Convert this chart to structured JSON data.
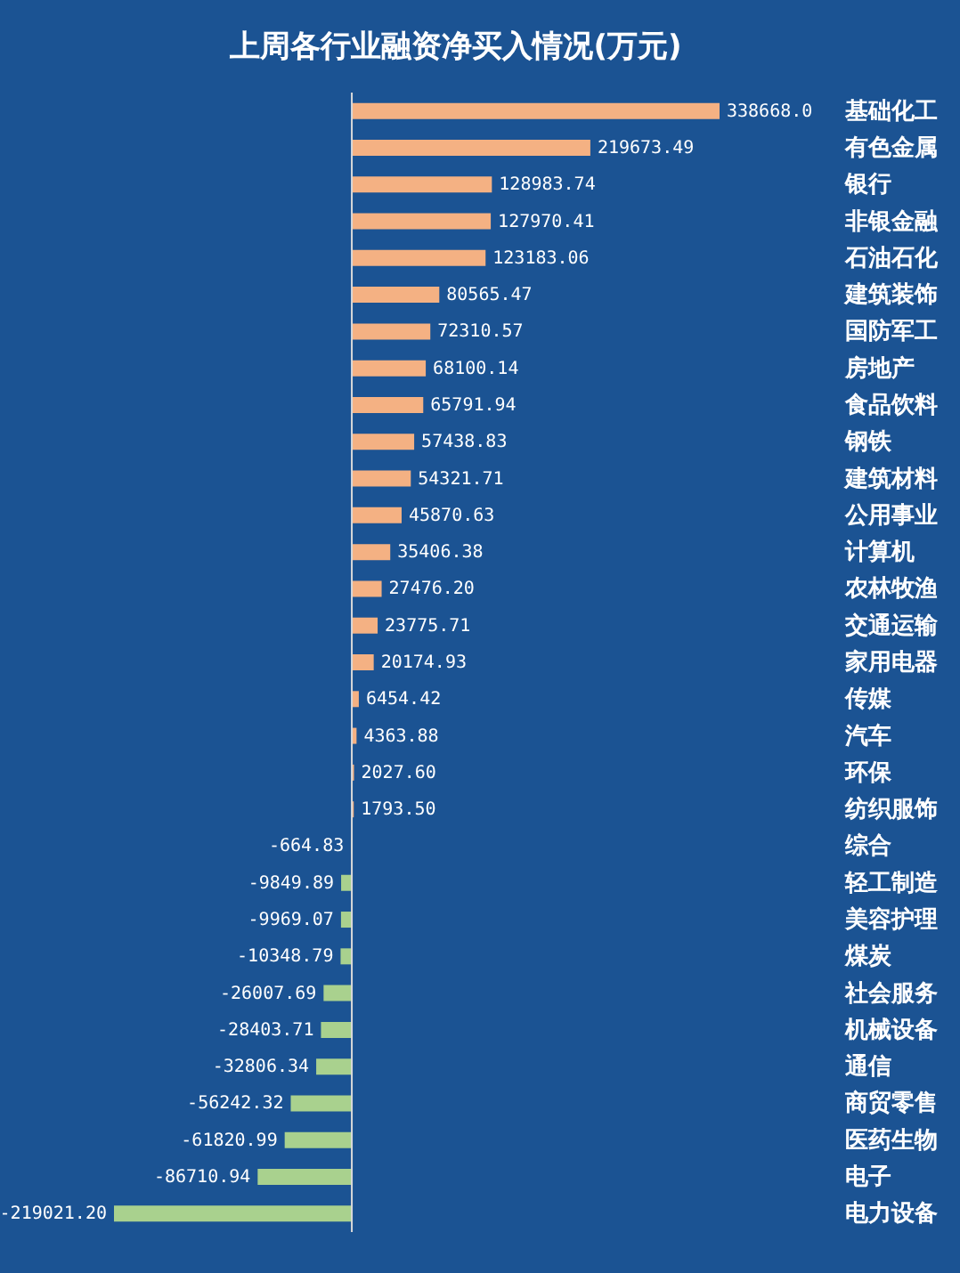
{
  "chart_data": {
    "type": "bar",
    "orientation": "horizontal",
    "title": "上周各行业融资净买入情况(万元)",
    "categories": [
      "基础化工",
      "有色金属",
      "银行",
      "非银金融",
      "石油石化",
      "建筑装饰",
      "国防军工",
      "房地产",
      "食品饮料",
      "钢铁",
      "建筑材料",
      "公用事业",
      "计算机",
      "农林牧渔",
      "交通运输",
      "家用电器",
      "传媒",
      "汽车",
      "环保",
      "纺织服饰",
      "综合",
      "轻工制造",
      "美容护理",
      "煤炭",
      "社会服务",
      "机械设备",
      "通信",
      "商贸零售",
      "医药生物",
      "电子",
      "电力设备"
    ],
    "values": [
      338668.0,
      219673.49,
      128983.74,
      127970.41,
      123183.06,
      80565.47,
      72310.57,
      68100.14,
      65791.94,
      57438.83,
      54321.71,
      45870.63,
      35406.38,
      27476.2,
      23775.71,
      20174.93,
      6454.42,
      4363.88,
      2027.6,
      1793.5,
      -664.83,
      -9849.89,
      -9969.07,
      -10348.79,
      -26007.69,
      -28403.71,
      -32806.34,
      -56242.32,
      -61820.99,
      -86710.94,
      -219021.2
    ],
    "value_labels": [
      "338668.0",
      "219673.49",
      "128983.74",
      "127970.41",
      "123183.06",
      "80565.47",
      "72310.57",
      "68100.14",
      "65791.94",
      "57438.83",
      "54321.71",
      "45870.63",
      "35406.38",
      "27476.20",
      "23775.71",
      "20174.93",
      "6454.42",
      "4363.88",
      "2027.60",
      "1793.50",
      "-664.83",
      "-9849.89",
      "-9969.07",
      "-10348.79",
      "-26007.69",
      "-28403.71",
      "-32806.34",
      "-56242.32",
      "-61820.99",
      "-86710.94",
      "-219021.20"
    ],
    "colors": [
      "#f4b183",
      "#f4b183",
      "#f4b183",
      "#f4b183",
      "#f4b183",
      "#f4b183",
      "#f4b183",
      "#f4b183",
      "#f4b183",
      "#f4b183",
      "#f4b183",
      "#f4b183",
      "#f4b183",
      "#f4b183",
      "#f4b183",
      "#f4b183",
      "#f4b183",
      "#f4b183",
      "#f4b183",
      "#f4b183",
      "#a9d18e",
      "#a9d18e",
      "#a9d18e",
      "#a9d18e",
      "#a9d18e",
      "#a9d18e",
      "#a9d18e",
      "#a9d18e",
      "#a9d18e",
      "#a9d18e",
      "#a9d18e"
    ]
  }
}
